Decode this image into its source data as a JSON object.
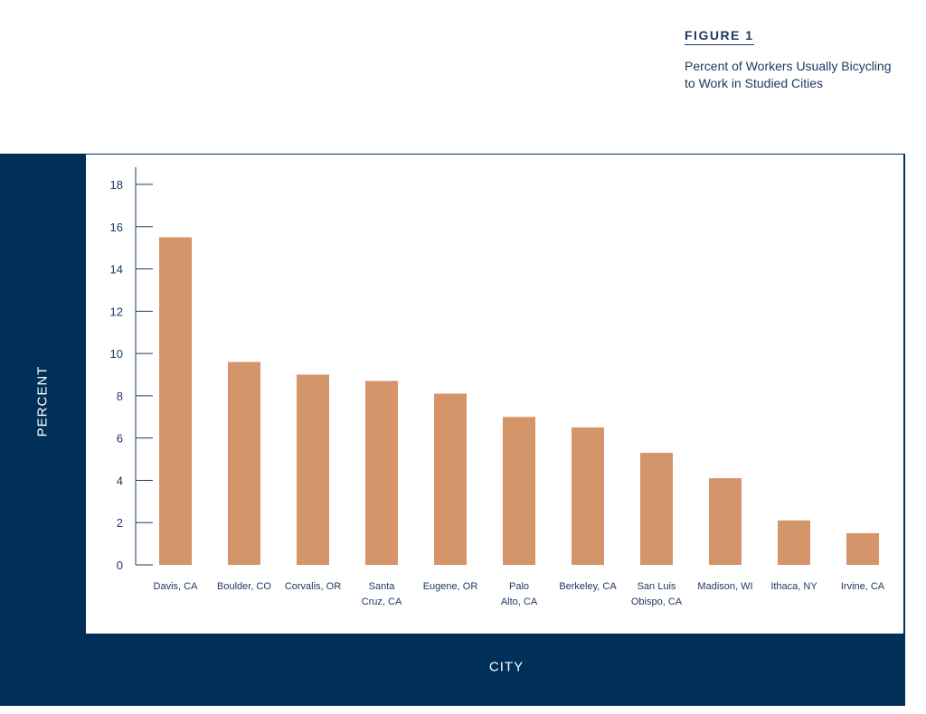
{
  "figure_label": "FIGURE 1",
  "chart_data": {
    "type": "bar",
    "title": "Percent of Workers Usually Bicycling to Work in Studied Cities",
    "title_lines": [
      "Percent of Workers Usually Bicycling",
      "to Work in Studied Cities"
    ],
    "xlabel": "CITY",
    "ylabel": "PERCENT",
    "ylim": [
      0,
      18
    ],
    "yticks": [
      0,
      2,
      4,
      6,
      8,
      10,
      12,
      14,
      16,
      18
    ],
    "categories": [
      [
        "Davis, CA"
      ],
      [
        "Boulder, CO"
      ],
      [
        "Corvalis, OR"
      ],
      [
        "Santa",
        "Cruz, CA"
      ],
      [
        "Eugene, OR"
      ],
      [
        "Palo",
        "Alto, CA"
      ],
      [
        "Berkeley, CA"
      ],
      [
        "San Luis",
        "Obispo, CA"
      ],
      [
        "Madison, WI"
      ],
      [
        "Ithaca, NY"
      ],
      [
        "Irvine, CA"
      ]
    ],
    "values": [
      15.5,
      9.6,
      9.0,
      8.7,
      8.1,
      7.0,
      6.5,
      5.3,
      4.1,
      2.1,
      1.5
    ],
    "bar_color": "#d4956a",
    "axis_color": "#1f3864",
    "grid": false
  }
}
